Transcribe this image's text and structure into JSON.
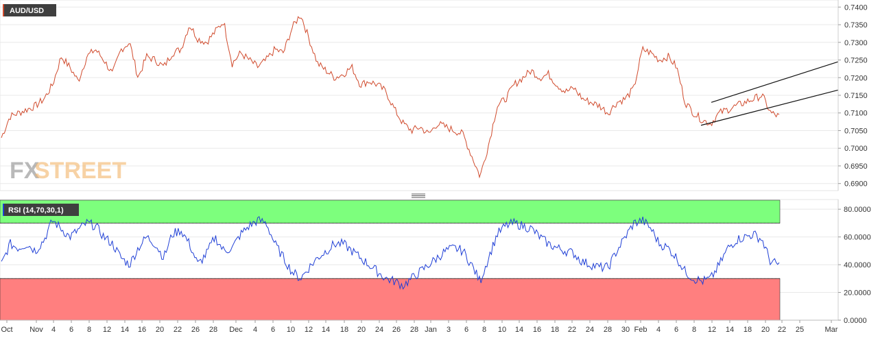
{
  "colors": {
    "price_line": "#d04a2c",
    "rsi_line": "#1f3fd6",
    "overbought_fill": "#7dff7d",
    "oversold_fill": "#ff7f7f",
    "chip_bg": "#3f3f3f",
    "grid": "#e8e8e8",
    "panel_bg": "#f7f7f7",
    "watermark_fx": "#8c8c8c",
    "watermark_street": "#f2b56b"
  },
  "icons": {
    "splitter": "drag-handle-icon"
  },
  "watermark": {
    "fx": "FX",
    "street": "STREET"
  },
  "chart_data": [
    {
      "type": "line",
      "title": "AUD/USD",
      "ylim": [
        0.688,
        0.742
      ],
      "y_ticks": [
        "0.7400",
        "0.7350",
        "0.7300",
        "0.7250",
        "0.7200",
        "0.7150",
        "0.7100",
        "0.7050",
        "0.7000",
        "0.6950",
        "0.6900"
      ],
      "x_ticks": [
        "Oct",
        "Nov",
        "4",
        "6",
        "8",
        "12",
        "14",
        "16",
        "20",
        "22",
        "26",
        "28",
        "Dec",
        "4",
        "6",
        "10",
        "12",
        "14",
        "18",
        "20",
        "24",
        "26",
        "28",
        "Jan",
        "3",
        "6",
        "8",
        "10",
        "14",
        "16",
        "18",
        "22",
        "24",
        "28",
        "30",
        "Feb",
        "4",
        "6",
        "8",
        "12",
        "14",
        "18",
        "20",
        "22",
        "25",
        "Mar"
      ],
      "price_anchors": [
        0.703,
        0.709,
        0.71,
        0.711,
        0.712,
        0.714,
        0.718,
        0.726,
        0.723,
        0.719,
        0.726,
        0.728,
        0.725,
        0.721,
        0.728,
        0.73,
        0.72,
        0.726,
        0.725,
        0.723,
        0.727,
        0.728,
        0.735,
        0.731,
        0.73,
        0.733,
        0.736,
        0.724,
        0.727,
        0.725,
        0.723,
        0.725,
        0.728,
        0.727,
        0.734,
        0.738,
        0.731,
        0.724,
        0.722,
        0.72,
        0.721,
        0.723,
        0.718,
        0.719,
        0.718,
        0.716,
        0.711,
        0.707,
        0.705,
        0.706,
        0.704,
        0.707,
        0.706,
        0.705,
        0.704,
        0.698,
        0.692,
        0.701,
        0.712,
        0.714,
        0.718,
        0.72,
        0.722,
        0.72,
        0.721,
        0.718,
        0.716,
        0.717,
        0.714,
        0.713,
        0.712,
        0.71,
        0.713,
        0.714,
        0.717,
        0.728,
        0.727,
        0.725,
        0.726,
        0.723,
        0.713,
        0.71,
        0.708,
        0.707,
        0.71,
        0.711,
        0.712,
        0.713,
        0.714,
        0.715,
        0.71,
        0.709
      ],
      "channel_upper": {
        "from": [
          "Feb 12",
          0.713
        ],
        "to": [
          "Mar 2",
          0.7245
        ]
      },
      "channel_lower": {
        "from": [
          "Feb 10",
          0.7065
        ],
        "to": [
          "Mar 2",
          0.7165
        ]
      }
    },
    {
      "type": "line",
      "title": "RSI (14,70,30,1)",
      "ylim": [
        0,
        87
      ],
      "y_ticks": [
        "80.0000",
        "60.0000",
        "40.0000",
        "20.0000",
        "0.0000"
      ],
      "overbought_level": 70,
      "oversold_level": 30,
      "rsi_anchors": [
        40,
        55,
        52,
        55,
        50,
        58,
        72,
        66,
        60,
        65,
        70,
        68,
        60,
        55,
        45,
        40,
        52,
        60,
        55,
        45,
        62,
        65,
        55,
        40,
        48,
        60,
        50,
        52,
        62,
        68,
        72,
        70,
        55,
        45,
        35,
        30,
        38,
        45,
        50,
        55,
        55,
        50,
        45,
        40,
        35,
        30,
        28,
        25,
        30,
        35,
        40,
        45,
        50,
        52,
        50,
        40,
        28,
        45,
        62,
        68,
        70,
        68,
        66,
        60,
        55,
        52,
        50,
        48,
        42,
        40,
        38,
        38,
        50,
        60,
        70,
        72,
        66,
        55,
        52,
        45,
        35,
        30,
        28,
        30,
        40,
        52,
        58,
        60,
        62,
        58,
        42,
        40
      ]
    }
  ]
}
